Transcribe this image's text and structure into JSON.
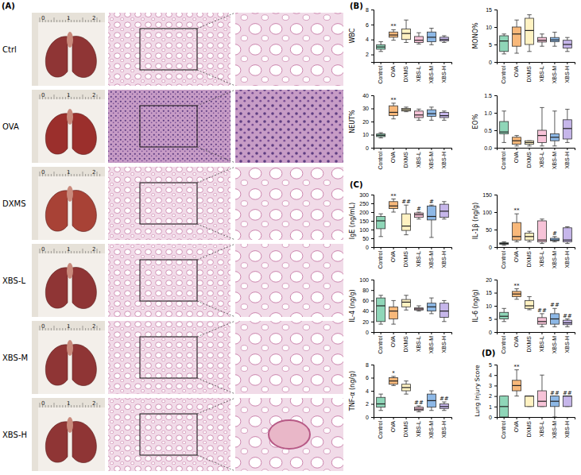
{
  "panel_labels": [
    "(A)",
    "(B)",
    "(C)",
    "(D)"
  ],
  "figure_a": {
    "rows": [
      "Ctrl",
      "OVA",
      "DXMS",
      "XBS-L",
      "XBS-M",
      "XBS-H"
    ],
    "ruler_ticks": [
      0,
      1,
      2
    ]
  },
  "chart_data": [
    {
      "type": "box",
      "y_label": "WBC",
      "categories": [
        "Control",
        "OVA",
        "DXMS",
        "XBS-L",
        "XBS-M",
        "XBS-H"
      ],
      "colors": [
        "#8fd6b8",
        "#f8b87a",
        "#fff2c2",
        "#f7c3d8",
        "#8db8e6",
        "#c6b6ea"
      ],
      "ylim": [
        1,
        8
      ],
      "yticks": [
        2,
        4,
        6,
        8
      ],
      "grid": false,
      "min": [
        2.4,
        3.9,
        3.6,
        3.4,
        3.3,
        3.6
      ],
      "q1": [
        2.7,
        4.3,
        4.0,
        3.6,
        3.7,
        3.8
      ],
      "median": [
        3.0,
        4.6,
        4.8,
        3.9,
        4.3,
        4.0
      ],
      "q3": [
        3.3,
        5.0,
        5.4,
        4.4,
        5.0,
        4.3
      ],
      "max": [
        3.7,
        5.3,
        6.6,
        4.9,
        5.5,
        4.5
      ],
      "annotations": [
        null,
        "**",
        null,
        null,
        null,
        null
      ]
    },
    {
      "type": "box",
      "y_label": "MONO%",
      "categories": [
        "Control",
        "OVA",
        "DXMS",
        "XBS-L",
        "XBS-M",
        "XBS-H"
      ],
      "colors": [
        "#8fd6b8",
        "#f8b87a",
        "#fff2c2",
        "#f7c3d8",
        "#8db8e6",
        "#c6b6ea"
      ],
      "ylim": [
        0,
        15
      ],
      "yticks": [
        0,
        5,
        10,
        15
      ],
      "grid": false,
      "min": [
        2.3,
        2.5,
        3,
        4.5,
        4.5,
        3
      ],
      "q1": [
        3,
        4.5,
        5,
        5.7,
        5.8,
        4
      ],
      "median": [
        6,
        8,
        9,
        6.2,
        6.3,
        5
      ],
      "q3": [
        7.5,
        10,
        12.5,
        7,
        7,
        6.2
      ],
      "max": [
        8,
        12,
        13.5,
        8,
        8.5,
        7
      ],
      "annotations": [
        null,
        null,
        null,
        null,
        null,
        null
      ]
    },
    {
      "type": "box",
      "y_label": "NEUT%",
      "categories": [
        "Control",
        "OVA",
        "DXMS",
        "XBS-L",
        "XBS-M",
        "XBS-H"
      ],
      "colors": [
        "#8fd6b8",
        "#f8b87a",
        "#fff2c2",
        "#f7c3d8",
        "#8db8e6",
        "#c6b6ea"
      ],
      "ylim": [
        0,
        40
      ],
      "yticks": [
        0,
        10,
        20,
        30,
        40
      ],
      "grid": false,
      "min": [
        7.5,
        22,
        27.5,
        21,
        21,
        21
      ],
      "q1": [
        8.5,
        24.5,
        28,
        23,
        24,
        23
      ],
      "median": [
        9.5,
        27,
        29,
        25,
        26,
        24.5
      ],
      "q3": [
        10.5,
        32,
        30,
        28,
        29,
        27
      ],
      "max": [
        11.5,
        34,
        31,
        29.5,
        31,
        28
      ],
      "annotations": [
        null,
        "**",
        null,
        null,
        null,
        null
      ]
    },
    {
      "type": "box",
      "y_label": "EO%",
      "categories": [
        "Control",
        "OVA",
        "DXMS",
        "XBS-L",
        "XBS-M",
        "XBS-H"
      ],
      "colors": [
        "#8fd6b8",
        "#f8b87a",
        "#fff2c2",
        "#f7c3d8",
        "#8db8e6",
        "#c6b6ea"
      ],
      "ylim": [
        0,
        1.5
      ],
      "yticks": [
        {
          "value": 0,
          "label": "0.0"
        },
        0.5,
        {
          "value": 1,
          "label": "1.0"
        },
        1.5
      ],
      "grid": false,
      "min": [
        0.15,
        0.05,
        0.05,
        0.05,
        0.05,
        0.15
      ],
      "q1": [
        0.4,
        0.1,
        0.1,
        0.15,
        0.2,
        0.25
      ],
      "median": [
        0.45,
        0.2,
        0.15,
        0.35,
        0.3,
        0.55
      ],
      "q3": [
        0.75,
        0.3,
        0.2,
        0.5,
        0.4,
        0.8
      ],
      "max": [
        1.05,
        0.35,
        0.2,
        1.15,
        1.05,
        1.1
      ],
      "annotations": [
        null,
        null,
        null,
        null,
        null,
        null
      ]
    },
    {
      "type": "box",
      "y_label": "IgE (ng/mL)",
      "categories": [
        "Control",
        "OVA",
        "DXMS",
        "XBS-L",
        "XBS-M",
        "XBS-H"
      ],
      "colors": [
        "#8fd6b8",
        "#f8b87a",
        "#fff2c2",
        "#f7c3d8",
        "#8db8e6",
        "#c6b6ea"
      ],
      "ylim": [
        0,
        300
      ],
      "yticks": [
        0,
        50,
        100,
        150,
        200,
        250,
        300
      ],
      "grid": false,
      "min": [
        60,
        200,
        70,
        160,
        55,
        160
      ],
      "q1": [
        105,
        220,
        95,
        170,
        155,
        170
      ],
      "median": [
        150,
        235,
        120,
        185,
        175,
        205
      ],
      "q3": [
        175,
        260,
        190,
        195,
        235,
        245
      ],
      "max": [
        190,
        275,
        240,
        200,
        240,
        260
      ],
      "annotations": [
        null,
        "**",
        "##",
        "#",
        "#",
        null
      ]
    },
    {
      "type": "box",
      "y_label": "IL-1β (ng/g)",
      "categories": [
        "Control",
        "OVA",
        "DXMS",
        "XBS-L",
        "XBS-M",
        "XBS-H"
      ],
      "colors": [
        "#8fd6b8",
        "#f8b87a",
        "#fff2c2",
        "#f7c3d8",
        "#8db8e6",
        "#c6b6ea"
      ],
      "ylim": [
        0,
        150
      ],
      "yticks": [
        0,
        50,
        100,
        150
      ],
      "grid": false,
      "min": [
        5,
        15,
        15,
        10,
        15,
        10
      ],
      "q1": [
        8,
        20,
        20,
        15,
        18,
        15
      ],
      "median": [
        10,
        30,
        30,
        20,
        20,
        20
      ],
      "q3": [
        12,
        70,
        40,
        75,
        25,
        55
      ],
      "max": [
        15,
        95,
        45,
        80,
        30,
        58
      ],
      "annotations": [
        null,
        "**",
        null,
        null,
        "#",
        null
      ]
    },
    {
      "type": "box",
      "y_label": "IL-4 (ng/g)",
      "categories": [
        "Control",
        "OVA",
        "DXMS",
        "XBS-L",
        "XBS-M",
        "XBS-H"
      ],
      "colors": [
        "#8fd6b8",
        "#f8b87a",
        "#fff2c2",
        "#f7c3d8",
        "#8db8e6",
        "#c6b6ea"
      ],
      "ylim": [
        0,
        100
      ],
      "yticks": [
        0,
        20,
        40,
        60,
        80,
        100
      ],
      "grid": false,
      "min": [
        15,
        15,
        42,
        40,
        35,
        20
      ],
      "q1": [
        20,
        25,
        48,
        42,
        40,
        28
      ],
      "median": [
        50,
        40,
        57,
        44,
        48,
        40
      ],
      "q3": [
        65,
        48,
        62,
        46,
        55,
        55
      ],
      "max": [
        70,
        60,
        70,
        50,
        65,
        60
      ],
      "annotations": [
        null,
        null,
        null,
        null,
        null,
        null
      ]
    },
    {
      "type": "box",
      "y_label": "IL-6 (ng/g)",
      "categories": [
        "Control",
        "OVA",
        "DXMS",
        "XBS-L",
        "XBS-M",
        "XBS-H"
      ],
      "colors": [
        "#8fd6b8",
        "#f8b87a",
        "#fff2c2",
        "#f7c3d8",
        "#8db8e6",
        "#c6b6ea"
      ],
      "ylim": [
        0,
        20
      ],
      "yticks": [
        0,
        5,
        10,
        15,
        20
      ],
      "grid": false,
      "min": [
        4,
        12.5,
        8.5,
        2,
        2,
        2
      ],
      "q1": [
        5,
        13.5,
        9,
        3,
        3,
        2.8
      ],
      "median": [
        6,
        14.5,
        10,
        4,
        5,
        3.5
      ],
      "q3": [
        7.5,
        15.5,
        12,
        5.5,
        7,
        4.5
      ],
      "max": [
        9,
        16.5,
        13.5,
        7,
        9,
        5
      ],
      "annotations": [
        null,
        "**",
        null,
        "##",
        "##",
        "##"
      ]
    },
    {
      "type": "box",
      "y_label": "TNF-α (ng/g)",
      "categories": [
        "Control",
        "OVA",
        "DXMS",
        "XBS-L",
        "XBS-M",
        "XBS-H"
      ],
      "colors": [
        "#8fd6b8",
        "#f8b87a",
        "#fff2c2",
        "#f7c3d8",
        "#8db8e6",
        "#c6b6ea"
      ],
      "ylim": [
        0,
        8
      ],
      "yticks": [
        0,
        2,
        4,
        6,
        8
      ],
      "grid": false,
      "min": [
        1,
        4.8,
        3.5,
        0.8,
        1,
        1
      ],
      "q1": [
        1.5,
        5,
        4,
        1,
        1.5,
        1.3
      ],
      "median": [
        2,
        5.5,
        4.5,
        1.2,
        2.5,
        1.6
      ],
      "q3": [
        3,
        6,
        5,
        1.5,
        3.5,
        2
      ],
      "max": [
        3.5,
        6.2,
        5.5,
        1.7,
        4,
        2.3
      ],
      "annotations": [
        null,
        "*",
        null,
        "##",
        null,
        "##"
      ]
    },
    {
      "type": "box",
      "y_label": "Lung Injury Score",
      "categories": [
        "Control",
        "OVA",
        "DXMS",
        "XBS-L",
        "XBS-M",
        "XBS-H"
      ],
      "colors": [
        "#8fd6b8",
        "#f8b87a",
        "#fff2c2",
        "#f7c3d8",
        "#8db8e6",
        "#c6b6ea"
      ],
      "ylim": [
        0,
        5
      ],
      "yticks": [
        0,
        1,
        2,
        3,
        4,
        5
      ],
      "grid": false,
      "min": [
        0,
        2,
        1,
        1,
        0,
        1
      ],
      "q1": [
        0,
        2.5,
        1,
        1,
        1,
        1
      ],
      "median": [
        1,
        3,
        2,
        1.5,
        1.5,
        2
      ],
      "q3": [
        2,
        3.5,
        2,
        2.5,
        2,
        2
      ],
      "max": [
        2,
        4.5,
        2,
        4,
        2,
        2
      ],
      "annotations": [
        null,
        "**",
        null,
        null,
        "##",
        "##"
      ]
    }
  ]
}
